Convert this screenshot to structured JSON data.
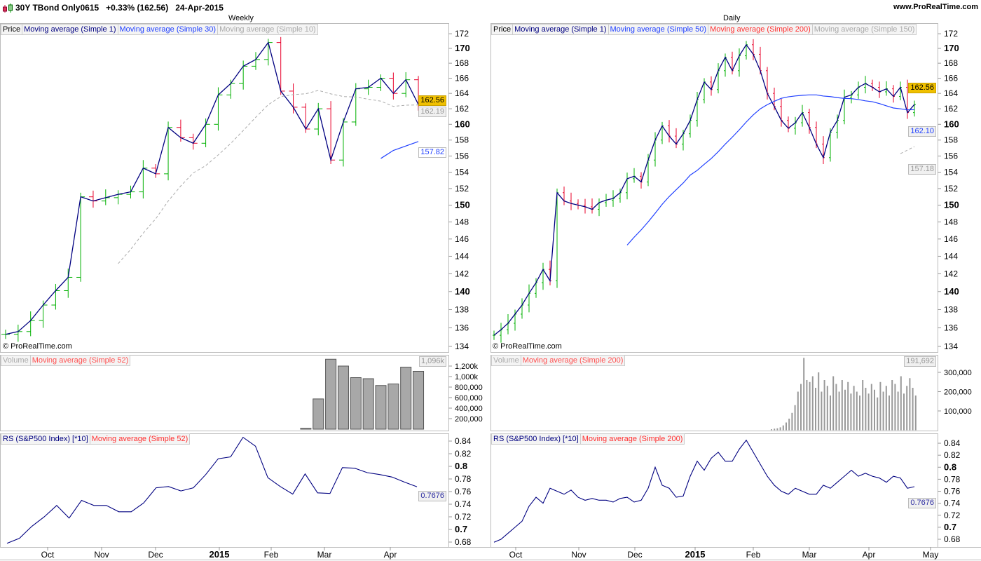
{
  "header": {
    "title": "30Y TBond Only0615   +0.33% (162.56)   24-Apr-2015",
    "site": "www.ProRealTime.com"
  },
  "panels": {
    "weekly": {
      "title": "Weekly",
      "price_legend": [
        "Price",
        "Moving average (Simple 1)",
        "Moving average (Simple 30)",
        "Moving average (Simple 10)"
      ],
      "volume_legend": [
        "Volume",
        "Moving average (Simple 52)"
      ],
      "rs_legend": [
        "RS (S&P500 Index) [*10]",
        "Moving average (Simple 52)"
      ],
      "copyright": "© ProRealTime.com",
      "last_price_tag": "162.56",
      "ma10_tag": "162.19",
      "ma30_tag": "157.82",
      "volume_tag": "1,096k",
      "rs_tag": "0.7676"
    },
    "daily": {
      "title": "Daily",
      "price_legend": [
        "Price",
        "Moving average (Simple 1)",
        "Moving average (Simple 50)",
        "Moving average (Simple 200)",
        "Moving average (Simple 150)"
      ],
      "volume_legend": [
        "Volume",
        "Moving average (Simple 200)"
      ],
      "rs_legend": [
        "RS (S&P500 Index) [*10]",
        "Moving average (Simple 200)"
      ],
      "copyright": "© ProRealTime.com",
      "last_price_tag": "162.56",
      "ma50_tag": "162.10",
      "ma150_tag": "157.18",
      "volume_tag": "191,692",
      "rs_tag": "0.7676"
    }
  },
  "colors": {
    "up": "#00b000",
    "down": "#e8002a",
    "ma1": "#000080",
    "ma_blue": "#2040ff",
    "ma_gray": "#a0a0a0",
    "ma_red": "#ff3030",
    "last_tag": "#f0c000"
  },
  "chart_data": [
    {
      "type": "bar",
      "name": "weekly-price",
      "scale": "log",
      "ylim": [
        134,
        172
      ],
      "yticks": [
        "134",
        "136",
        "138",
        "140",
        "142",
        "144",
        "146",
        "148",
        "150",
        "152",
        "154",
        "156",
        "158",
        "160",
        "162",
        "164",
        "166",
        "168",
        "170",
        "172"
      ],
      "xticks": [
        "Oct",
        "Nov",
        "Dec",
        "2015",
        "Feb",
        "Mar",
        "Apr"
      ],
      "closes": [
        135.3,
        135.6,
        136.8,
        138.5,
        140.1,
        141.6,
        151.0,
        150.5,
        150.9,
        151.3,
        151.6,
        154.5,
        153.8,
        159.6,
        158.3,
        157.6,
        160.0,
        163.8,
        165.3,
        167.6,
        168.5,
        170.8,
        164.3,
        162.2,
        159.4,
        162.0,
        155.5,
        160.3,
        164.6,
        164.8,
        166.0,
        164.0,
        165.8,
        162.56
      ],
      "volume_k": [
        15,
        575,
        1330,
        1200,
        980,
        960,
        830,
        860,
        1180,
        1100
      ],
      "volume_ticks": [
        "200,000",
        "400,000",
        "600,000",
        "800,000",
        "1,000k",
        "1,200k"
      ],
      "rs": [
        0.678,
        0.686,
        0.705,
        0.72,
        0.738,
        0.718,
        0.746,
        0.738,
        0.738,
        0.728,
        0.728,
        0.742,
        0.766,
        0.768,
        0.761,
        0.766,
        0.787,
        0.812,
        0.815,
        0.846,
        0.832,
        0.782,
        0.768,
        0.756,
        0.788,
        0.758,
        0.757,
        0.798,
        0.797,
        0.79,
        0.787,
        0.783,
        0.775,
        0.7676
      ],
      "rs_ticks": [
        "0.68",
        "0.7",
        "0.72",
        "0.74",
        "0.76",
        "0.78",
        "0.8",
        "0.82",
        "0.84"
      ]
    },
    {
      "type": "bar",
      "name": "daily-price",
      "scale": "log",
      "ylim": [
        134,
        172
      ],
      "yticks": [
        "134",
        "136",
        "138",
        "140",
        "142",
        "144",
        "146",
        "148",
        "150",
        "152",
        "154",
        "156",
        "158",
        "160",
        "162",
        "164",
        "166",
        "168",
        "170",
        "172"
      ],
      "xticks": [
        "Oct",
        "Nov",
        "Dec",
        "2015",
        "Feb",
        "Mar",
        "Apr",
        "May"
      ],
      "closes": [
        135.2,
        135.8,
        136.5,
        137.5,
        138.5,
        139.8,
        141,
        142.5,
        141.2,
        151.5,
        150.5,
        150.2,
        150,
        149.8,
        149.5,
        150.3,
        150.6,
        150.8,
        151.5,
        153.2,
        153.5,
        152.8,
        155.5,
        158,
        159.8,
        158.5,
        157.5,
        158.8,
        160.5,
        163.2,
        165.5,
        164.5,
        167,
        168.8,
        167,
        169,
        170.5,
        169.2,
        167,
        164,
        162.3,
        160.5,
        159.5,
        160.2,
        161.5,
        159.6,
        157.5,
        155.8,
        159,
        160.5,
        163.5,
        163.8,
        164.8,
        165.3,
        164.8,
        164.2,
        164.6,
        163.6,
        164.8,
        161.5,
        162.56
      ],
      "ma150_tail": [
        156.3,
        157.18
      ],
      "volume_k": [
        5,
        8,
        10,
        15,
        25,
        40,
        60,
        90,
        130,
        200,
        240,
        375,
        260,
        250,
        280,
        220,
        300,
        200,
        260,
        230,
        180,
        280,
        240,
        200,
        260,
        210,
        250,
        190,
        230,
        200,
        180,
        260,
        220,
        190,
        240,
        210,
        170,
        250,
        200,
        230,
        180,
        260,
        240,
        200,
        280,
        190,
        230,
        270,
        220,
        180
      ],
      "volume_ticks": [
        "100,000",
        "200,000",
        "300,000"
      ],
      "rs": [
        0.675,
        0.68,
        0.69,
        0.7,
        0.71,
        0.735,
        0.75,
        0.74,
        0.765,
        0.76,
        0.755,
        0.762,
        0.75,
        0.745,
        0.748,
        0.745,
        0.745,
        0.742,
        0.748,
        0.75,
        0.742,
        0.745,
        0.765,
        0.8,
        0.77,
        0.765,
        0.75,
        0.752,
        0.785,
        0.81,
        0.795,
        0.815,
        0.825,
        0.81,
        0.81,
        0.83,
        0.845,
        0.825,
        0.805,
        0.785,
        0.77,
        0.76,
        0.755,
        0.765,
        0.76,
        0.755,
        0.755,
        0.77,
        0.765,
        0.775,
        0.785,
        0.795,
        0.785,
        0.79,
        0.785,
        0.782,
        0.775,
        0.785,
        0.782,
        0.765,
        0.7676
      ],
      "rs_ticks": [
        "0.68",
        "0.7",
        "0.72",
        "0.74",
        "0.76",
        "0.78",
        "0.8",
        "0.82",
        "0.84"
      ]
    }
  ]
}
